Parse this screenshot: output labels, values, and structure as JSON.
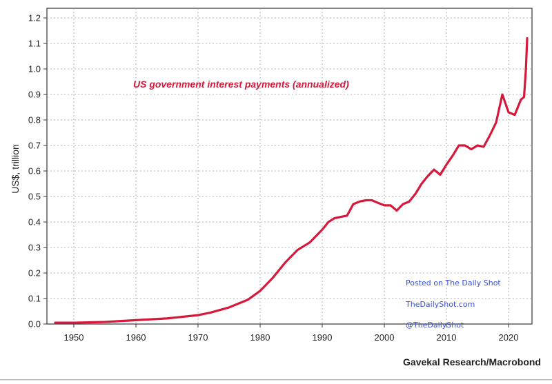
{
  "chart_data": {
    "type": "line",
    "title": "",
    "xlabel": "",
    "ylabel": "US$, trillion",
    "xlim": [
      1947,
      2024
    ],
    "ylim": [
      0,
      1.25
    ],
    "x_ticks": [
      1950,
      1960,
      1970,
      1980,
      1990,
      2000,
      2010,
      2020
    ],
    "y_ticks": [
      0.0,
      0.1,
      0.2,
      0.3,
      0.4,
      0.5,
      0.6,
      0.7,
      0.8,
      0.9,
      1.0,
      1.1,
      1.2
    ],
    "y_tick_labels": [
      "0.0",
      "0.1",
      "0.2",
      "0.3",
      "0.4",
      "0.5",
      "0.6",
      "0.7",
      "0.8",
      "0.9",
      "1.0",
      "1.1",
      "1.2"
    ],
    "grid": true,
    "series": [
      {
        "name": "US government interest payments (annualized)",
        "color": "#d6183b",
        "x": [
          1947,
          1950,
          1955,
          1960,
          1965,
          1970,
          1972,
          1975,
          1978,
          1980,
          1982,
          1984,
          1986,
          1988,
          1990,
          1991,
          1992,
          1993,
          1994,
          1995,
          1996,
          1997,
          1998,
          1999,
          2000,
          2001,
          2002,
          2003,
          2004,
          2005,
          2006,
          2007,
          2008,
          2009,
          2010,
          2011,
          2012,
          2013,
          2014,
          2015,
          2016,
          2017,
          2018,
          2019,
          2020,
          2021,
          2022,
          2022.5,
          2022.8,
          2023
        ],
        "values": [
          0.005,
          0.005,
          0.008,
          0.015,
          0.022,
          0.035,
          0.045,
          0.065,
          0.095,
          0.13,
          0.18,
          0.24,
          0.29,
          0.32,
          0.37,
          0.4,
          0.415,
          0.42,
          0.425,
          0.47,
          0.48,
          0.485,
          0.485,
          0.475,
          0.465,
          0.465,
          0.445,
          0.47,
          0.48,
          0.51,
          0.55,
          0.58,
          0.605,
          0.585,
          0.625,
          0.66,
          0.7,
          0.7,
          0.685,
          0.7,
          0.695,
          0.74,
          0.79,
          0.9,
          0.83,
          0.82,
          0.88,
          0.89,
          1.0,
          1.12
        ]
      }
    ],
    "annotations": [
      "Posted on The Daily Shot",
      "TheDailyShot.com",
      "@TheDailyShot"
    ],
    "source": "Gavekal Research/Macrobond"
  }
}
